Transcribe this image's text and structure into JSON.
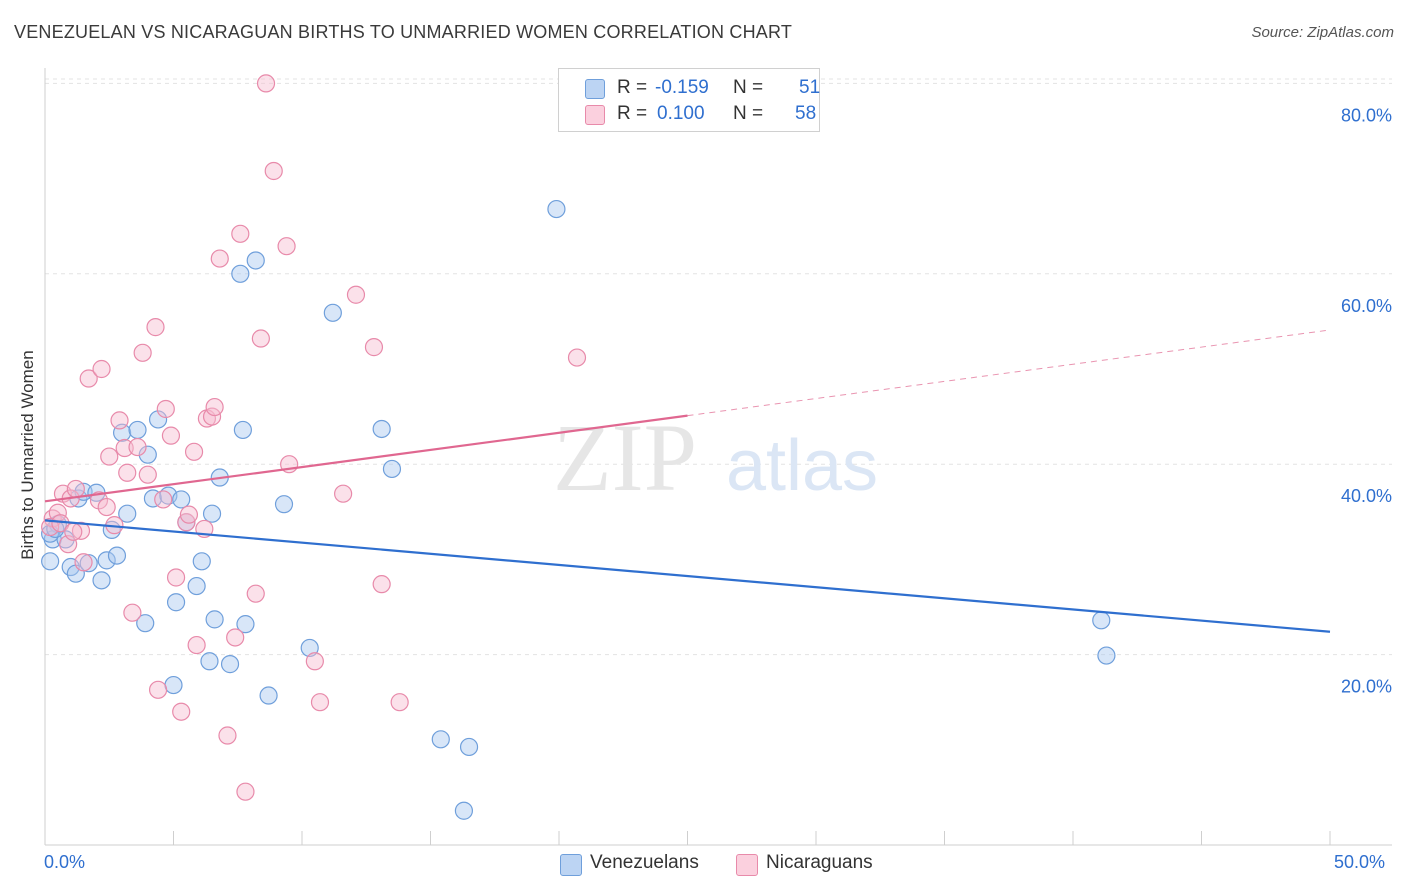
{
  "title": "VENEZUELAN VS NICARAGUAN BIRTHS TO UNMARRIED WOMEN CORRELATION CHART",
  "source": "Source: ZipAtlas.com",
  "watermark": {
    "zip": "ZIP",
    "atlas": "atlas"
  },
  "legend": {
    "r_label": "R =",
    "n_label": "N =",
    "rows": [
      {
        "r": "-0.159",
        "n": "51"
      },
      {
        "r": "0.100",
        "n": "58"
      }
    ]
  },
  "colors": {
    "venezuelans_fill": "#a9c8f0",
    "venezuelans_stroke": "#6f9fdb",
    "venezuelans_line": "#2f6fcf",
    "nicaraguans_fill": "#f7bdd0",
    "nicaraguans_stroke": "#e88aaa",
    "nicaraguans_line": "#e06790",
    "tick_label": "#2f6fcf",
    "grid": "#e3e3e3"
  },
  "chart_data": {
    "type": "scatter",
    "title": "VENEZUELAN VS NICARAGUAN BIRTHS TO UNMARRIED WOMEN CORRELATION CHART",
    "xlabel": "",
    "ylabel": "Births to Unmarried Women",
    "xlim": [
      0,
      50
    ],
    "ylim": [
      0,
      83
    ],
    "x_tick_labels": [
      "0.0%",
      "50.0%"
    ],
    "y_ticks": [
      20,
      40,
      60,
      80
    ],
    "y_tick_labels": [
      "20.0%",
      "40.0%",
      "60.0%",
      "80.0%"
    ],
    "grid": true,
    "legend_position": "top-center",
    "series": [
      {
        "name": "Venezuelans",
        "r": -0.159,
        "n": 51,
        "trend": {
          "x0": 0,
          "y0": 34.1,
          "x1": 50,
          "y1": 22.4
        },
        "points": [
          [
            0.3,
            32.1
          ],
          [
            0.5,
            33.7
          ],
          [
            0.8,
            32.1
          ],
          [
            1.0,
            29.2
          ],
          [
            1.2,
            28.5
          ],
          [
            1.3,
            36.4
          ],
          [
            1.5,
            37.1
          ],
          [
            1.7,
            29.6
          ],
          [
            2.0,
            37.0
          ],
          [
            2.2,
            27.8
          ],
          [
            2.4,
            29.9
          ],
          [
            2.6,
            33.1
          ],
          [
            2.8,
            30.4
          ],
          [
            3.0,
            43.3
          ],
          [
            3.2,
            34.8
          ],
          [
            3.6,
            43.6
          ],
          [
            3.9,
            23.3
          ],
          [
            4.0,
            41.0
          ],
          [
            4.2,
            36.4
          ],
          [
            4.4,
            44.7
          ],
          [
            4.8,
            36.7
          ],
          [
            5.0,
            16.8
          ],
          [
            5.1,
            25.5
          ],
          [
            5.3,
            36.3
          ],
          [
            5.5,
            33.9
          ],
          [
            5.9,
            27.2
          ],
          [
            6.1,
            29.8
          ],
          [
            6.4,
            19.3
          ],
          [
            6.5,
            34.8
          ],
          [
            6.6,
            23.7
          ],
          [
            6.8,
            38.6
          ],
          [
            7.2,
            19.0
          ],
          [
            7.6,
            60.0
          ],
          [
            7.7,
            43.6
          ],
          [
            7.8,
            23.2
          ],
          [
            8.2,
            61.4
          ],
          [
            8.7,
            15.7
          ],
          [
            9.3,
            35.8
          ],
          [
            10.3,
            20.7
          ],
          [
            11.2,
            55.9
          ],
          [
            13.1,
            43.7
          ],
          [
            13.5,
            39.5
          ],
          [
            15.4,
            11.1
          ],
          [
            16.3,
            3.6
          ],
          [
            16.5,
            10.3
          ],
          [
            19.9,
            66.8
          ],
          [
            41.1,
            23.6
          ],
          [
            41.3,
            19.9
          ],
          [
            0.2,
            32.7
          ],
          [
            0.4,
            33.2
          ],
          [
            0.2,
            29.8
          ]
        ]
      },
      {
        "name": "Nicaraguans",
        "r": 0.1,
        "n": 58,
        "trend": {
          "x0": 0,
          "y0": 36.1,
          "x1": 25,
          "y1": 45.1,
          "dash_to": {
            "x": 50,
            "y": 54.1
          }
        },
        "points": [
          [
            0.3,
            34.3
          ],
          [
            0.5,
            34.9
          ],
          [
            0.7,
            36.9
          ],
          [
            0.9,
            31.6
          ],
          [
            1.0,
            36.4
          ],
          [
            1.2,
            37.4
          ],
          [
            1.4,
            33.0
          ],
          [
            1.5,
            29.7
          ],
          [
            1.7,
            49.0
          ],
          [
            2.1,
            36.2
          ],
          [
            2.2,
            50.0
          ],
          [
            2.4,
            35.5
          ],
          [
            2.5,
            40.8
          ],
          [
            2.7,
            33.6
          ],
          [
            2.9,
            44.6
          ],
          [
            3.1,
            41.7
          ],
          [
            3.2,
            39.1
          ],
          [
            3.4,
            24.4
          ],
          [
            3.6,
            41.8
          ],
          [
            3.8,
            51.7
          ],
          [
            4.0,
            38.9
          ],
          [
            4.3,
            54.4
          ],
          [
            4.4,
            16.3
          ],
          [
            4.6,
            36.3
          ],
          [
            4.7,
            45.8
          ],
          [
            4.9,
            43.0
          ],
          [
            5.1,
            28.1
          ],
          [
            5.3,
            14.0
          ],
          [
            5.5,
            33.9
          ],
          [
            5.6,
            34.7
          ],
          [
            5.8,
            41.3
          ],
          [
            5.9,
            21.0
          ],
          [
            6.2,
            33.2
          ],
          [
            6.3,
            44.8
          ],
          [
            6.5,
            45.0
          ],
          [
            6.6,
            46.0
          ],
          [
            6.8,
            61.6
          ],
          [
            7.1,
            11.5
          ],
          [
            7.4,
            21.8
          ],
          [
            7.6,
            64.2
          ],
          [
            7.8,
            5.6
          ],
          [
            8.2,
            26.4
          ],
          [
            8.4,
            53.2
          ],
          [
            8.6,
            80.0
          ],
          [
            8.9,
            70.8
          ],
          [
            9.4,
            62.9
          ],
          [
            9.5,
            40.0
          ],
          [
            10.5,
            19.3
          ],
          [
            10.7,
            15.0
          ],
          [
            11.6,
            36.9
          ],
          [
            12.1,
            57.8
          ],
          [
            12.8,
            52.3
          ],
          [
            13.1,
            27.4
          ],
          [
            13.8,
            15.0
          ],
          [
            20.7,
            51.2
          ],
          [
            0.2,
            33.4
          ],
          [
            0.6,
            33.8
          ],
          [
            1.1,
            32.9
          ]
        ]
      }
    ]
  },
  "bottom_legend": [
    "Venezuelans",
    "Nicaraguans"
  ]
}
